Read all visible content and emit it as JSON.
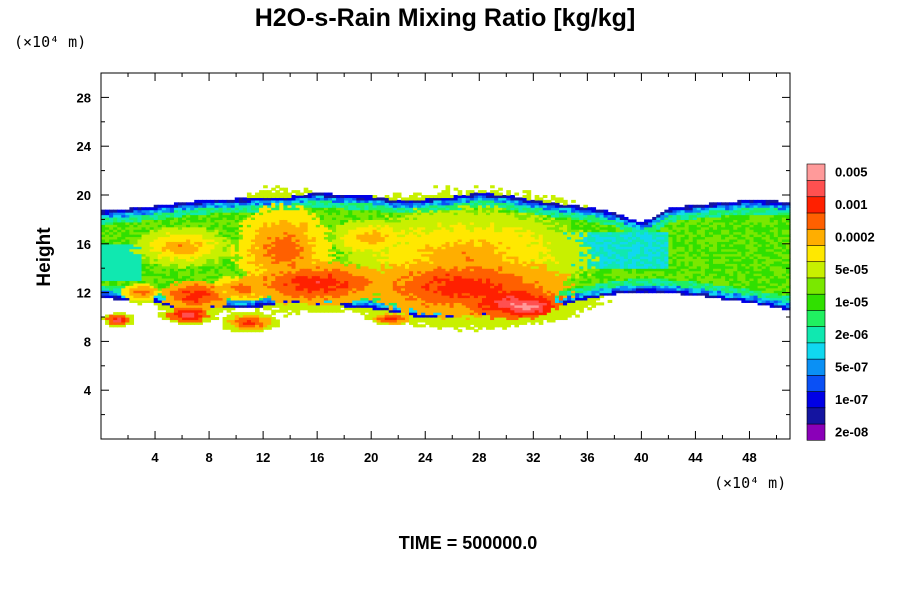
{
  "chart_data": {
    "type": "heatmap",
    "title": "H2O-s-Rain Mixing Ratio [kg/kg]",
    "xlabel": "",
    "ylabel": "Height",
    "x_unit": "(×10⁴ m)",
    "y_unit": "(×10⁴ m)",
    "xlim": [
      0,
      51
    ],
    "ylim": [
      0,
      30
    ],
    "x_ticks": [
      4,
      8,
      12,
      16,
      20,
      24,
      28,
      32,
      36,
      40,
      44,
      48
    ],
    "y_ticks": [
      4,
      8,
      12,
      16,
      20,
      24,
      28
    ],
    "footer": "TIME = 500000.0",
    "colorbar": {
      "colors": [
        "#8a00b8",
        "#1414a0",
        "#0000e6",
        "#0a50f5",
        "#0a90f5",
        "#10d8f0",
        "#10e8b0",
        "#20f060",
        "#30e000",
        "#7ae800",
        "#c8f000",
        "#ffe800",
        "#ffae00",
        "#ff6000",
        "#ff2000",
        "#ff5050",
        "#ff9a9a"
      ],
      "labels": [
        "2e-08",
        "1e-07",
        "5e-07",
        "2e-06",
        "1e-05",
        "5e-05",
        "0.0002",
        "0.001",
        "0.005"
      ]
    },
    "field": {
      "description_levels": "index into colorbar.colors, -1 = no rain",
      "top_boundary": [
        [
          0,
          18.7
        ],
        [
          2,
          18.9
        ],
        [
          4,
          19.1
        ],
        [
          6,
          19.4
        ],
        [
          8,
          19.6
        ],
        [
          10,
          19.7
        ],
        [
          12,
          19.8
        ],
        [
          14,
          19.9
        ],
        [
          16,
          20.2
        ],
        [
          18,
          20.0
        ],
        [
          20,
          19.9
        ],
        [
          22,
          19.6
        ],
        [
          24,
          19.7
        ],
        [
          26,
          19.9
        ],
        [
          28,
          20.2
        ],
        [
          30,
          20.0
        ],
        [
          32,
          19.6
        ],
        [
          34,
          19.3
        ],
        [
          36,
          19.0
        ],
        [
          38,
          18.6
        ],
        [
          39,
          18.1
        ],
        [
          40,
          17.8
        ],
        [
          41,
          18.2
        ],
        [
          42,
          18.9
        ],
        [
          44,
          19.2
        ],
        [
          46,
          19.4
        ],
        [
          48,
          19.6
        ],
        [
          50,
          19.5
        ],
        [
          51,
          19.4
        ]
      ],
      "bottom_boundary": [
        [
          0,
          11.6
        ],
        [
          2,
          11.4
        ],
        [
          4,
          11.3
        ],
        [
          6,
          10.6
        ],
        [
          8,
          10.8
        ],
        [
          10,
          10.7
        ],
        [
          12,
          10.9
        ],
        [
          14,
          11.3
        ],
        [
          16,
          11.0
        ],
        [
          18,
          10.9
        ],
        [
          20,
          10.7
        ],
        [
          22,
          10.4
        ],
        [
          24,
          9.9
        ],
        [
          26,
          10.1
        ],
        [
          28,
          10.2
        ],
        [
          30,
          10.3
        ],
        [
          32,
          10.6
        ],
        [
          34,
          11.0
        ],
        [
          36,
          11.5
        ],
        [
          38,
          11.9
        ],
        [
          40,
          12.1
        ],
        [
          42,
          12.0
        ],
        [
          44,
          11.8
        ],
        [
          46,
          11.5
        ],
        [
          48,
          11.2
        ],
        [
          50,
          10.8
        ],
        [
          51,
          10.6
        ]
      ],
      "cores": [
        {
          "x": 6.0,
          "y": 15.8,
          "rx": 3.5,
          "ry": 1.6,
          "level": 12
        },
        {
          "x": 13.5,
          "y": 15.5,
          "rx": 3.5,
          "ry": 3.6,
          "level": 13
        },
        {
          "x": 16.0,
          "y": 12.8,
          "rx": 5.5,
          "ry": 1.7,
          "level": 14
        },
        {
          "x": 20.0,
          "y": 16.5,
          "rx": 3.0,
          "ry": 1.5,
          "level": 12
        },
        {
          "x": 27.0,
          "y": 15.0,
          "rx": 9.0,
          "ry": 3.8,
          "level": 12
        },
        {
          "x": 27.0,
          "y": 12.5,
          "rx": 7.5,
          "ry": 2.4,
          "level": 14
        },
        {
          "x": 30.5,
          "y": 11.2,
          "rx": 3.5,
          "ry": 1.3,
          "level": 15
        },
        {
          "x": 31.5,
          "y": 10.9,
          "rx": 2.0,
          "ry": 0.8,
          "level": 16
        },
        {
          "x": 7.0,
          "y": 11.8,
          "rx": 2.5,
          "ry": 1.2,
          "level": 14
        },
        {
          "x": 3.0,
          "y": 12.1,
          "rx": 1.5,
          "ry": 0.7,
          "level": 13
        },
        {
          "x": 10.5,
          "y": 12.4,
          "rx": 2.5,
          "ry": 1.0,
          "level": 13
        },
        {
          "x": 6.5,
          "y": 10.2,
          "rx": 1.5,
          "ry": 0.6,
          "level": 15
        },
        {
          "x": 11.0,
          "y": 9.6,
          "rx": 1.5,
          "ry": 0.6,
          "level": 14
        },
        {
          "x": 1.3,
          "y": 9.8,
          "rx": 0.8,
          "ry": 0.4,
          "level": 15
        },
        {
          "x": 21.5,
          "y": 9.9,
          "rx": 1.3,
          "ry": 0.4,
          "level": 14
        }
      ]
    }
  }
}
